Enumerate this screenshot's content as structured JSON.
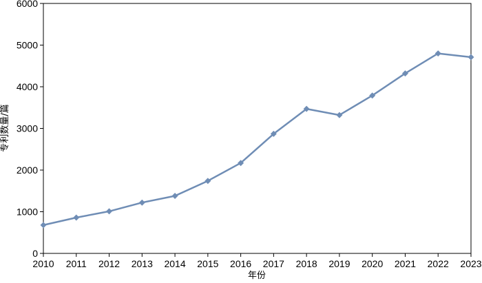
{
  "chart_data": {
    "type": "line",
    "title": "",
    "xlabel": "年份",
    "ylabel": "专利数量/篇",
    "x": [
      2010,
      2011,
      2012,
      2013,
      2014,
      2015,
      2016,
      2017,
      2018,
      2019,
      2020,
      2021,
      2022,
      2023
    ],
    "series": [
      {
        "values": [
          680,
          860,
          1010,
          1220,
          1380,
          1740,
          2170,
          2870,
          3470,
          3320,
          3790,
          4320,
          4800,
          4710
        ],
        "color": "#6f8db5",
        "marker": "diamond"
      }
    ],
    "xlim": [
      2010,
      2023
    ],
    "ylim": [
      0,
      6000
    ],
    "yticks": [
      0,
      1000,
      2000,
      3000,
      4000,
      5000,
      6000
    ],
    "grid": false,
    "legend": "none"
  }
}
